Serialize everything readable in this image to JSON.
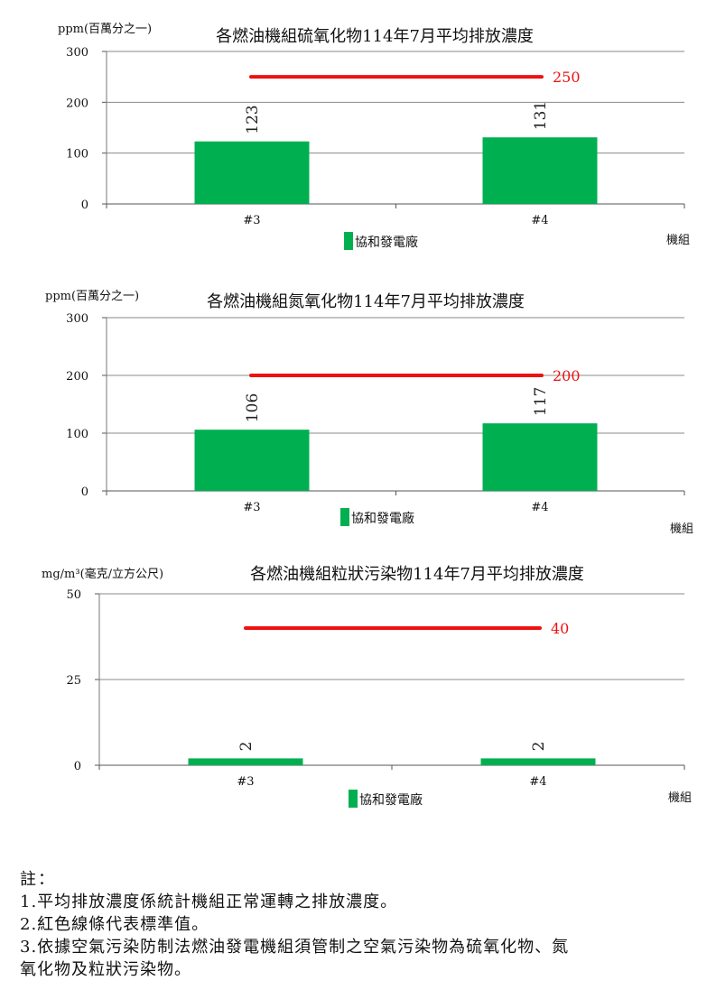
{
  "chart_data": [
    {
      "type": "bar",
      "title": "各燃油機組硫氧化物114年7月平均排放濃度",
      "ylabel": "ppm(百萬分之一)",
      "xlabel": "機組",
      "categories": [
        "#3",
        "#4"
      ],
      "series": [
        {
          "name": "協和發電廠",
          "values": [
            123,
            131
          ],
          "color": "#00b050"
        }
      ],
      "ylim": [
        0,
        300
      ],
      "yticks": [
        0,
        100,
        200,
        300
      ],
      "yticks_label": [
        "0",
        "100",
        "200",
        "300"
      ],
      "standard": {
        "value": 250,
        "label": "250",
        "color": "#ee1111"
      },
      "grid": true,
      "legend": "bottom"
    },
    {
      "type": "bar",
      "title": "各燃油機組氮氧化物114年7月平均排放濃度",
      "ylabel": "ppm(百萬分之一)",
      "xlabel": "機組",
      "categories": [
        "#3",
        "#4"
      ],
      "series": [
        {
          "name": "協和發電廠",
          "values": [
            106,
            117
          ],
          "color": "#00b050"
        }
      ],
      "ylim": [
        0,
        300
      ],
      "yticks": [
        0,
        100,
        200,
        300
      ],
      "yticks_label": [
        "0",
        "100",
        "200",
        "300"
      ],
      "standard": {
        "value": 200,
        "label": "200",
        "color": "#ee1111"
      },
      "grid": true,
      "legend": "bottom"
    },
    {
      "type": "bar",
      "title": "各燃油機組粒狀污染物114年7月平均排放濃度",
      "ylabel": "mg/m³(毫克/立方公尺)",
      "xlabel": "機組",
      "categories": [
        "#3",
        "#4"
      ],
      "series": [
        {
          "name": "協和發電廠",
          "values": [
            2,
            2
          ],
          "color": "#00b050"
        }
      ],
      "ylim": [
        0,
        50
      ],
      "yticks": [
        0,
        25,
        50
      ],
      "yticks_label": [
        "0",
        "25",
        "50"
      ],
      "standard": {
        "value": 40,
        "label": "40",
        "color": "#ee1111"
      },
      "grid": true,
      "legend": "bottom"
    }
  ],
  "notes": {
    "title": "註：",
    "items": [
      "1.平均排放濃度係統計機組正常運轉之排放濃度。",
      "2.紅色線條代表標準值。",
      "3.依據空氣污染防制法燃油發電機組須管制之空氣污染物為硫氧化物、氮",
      "氧化物及粒狀污染物。"
    ]
  }
}
